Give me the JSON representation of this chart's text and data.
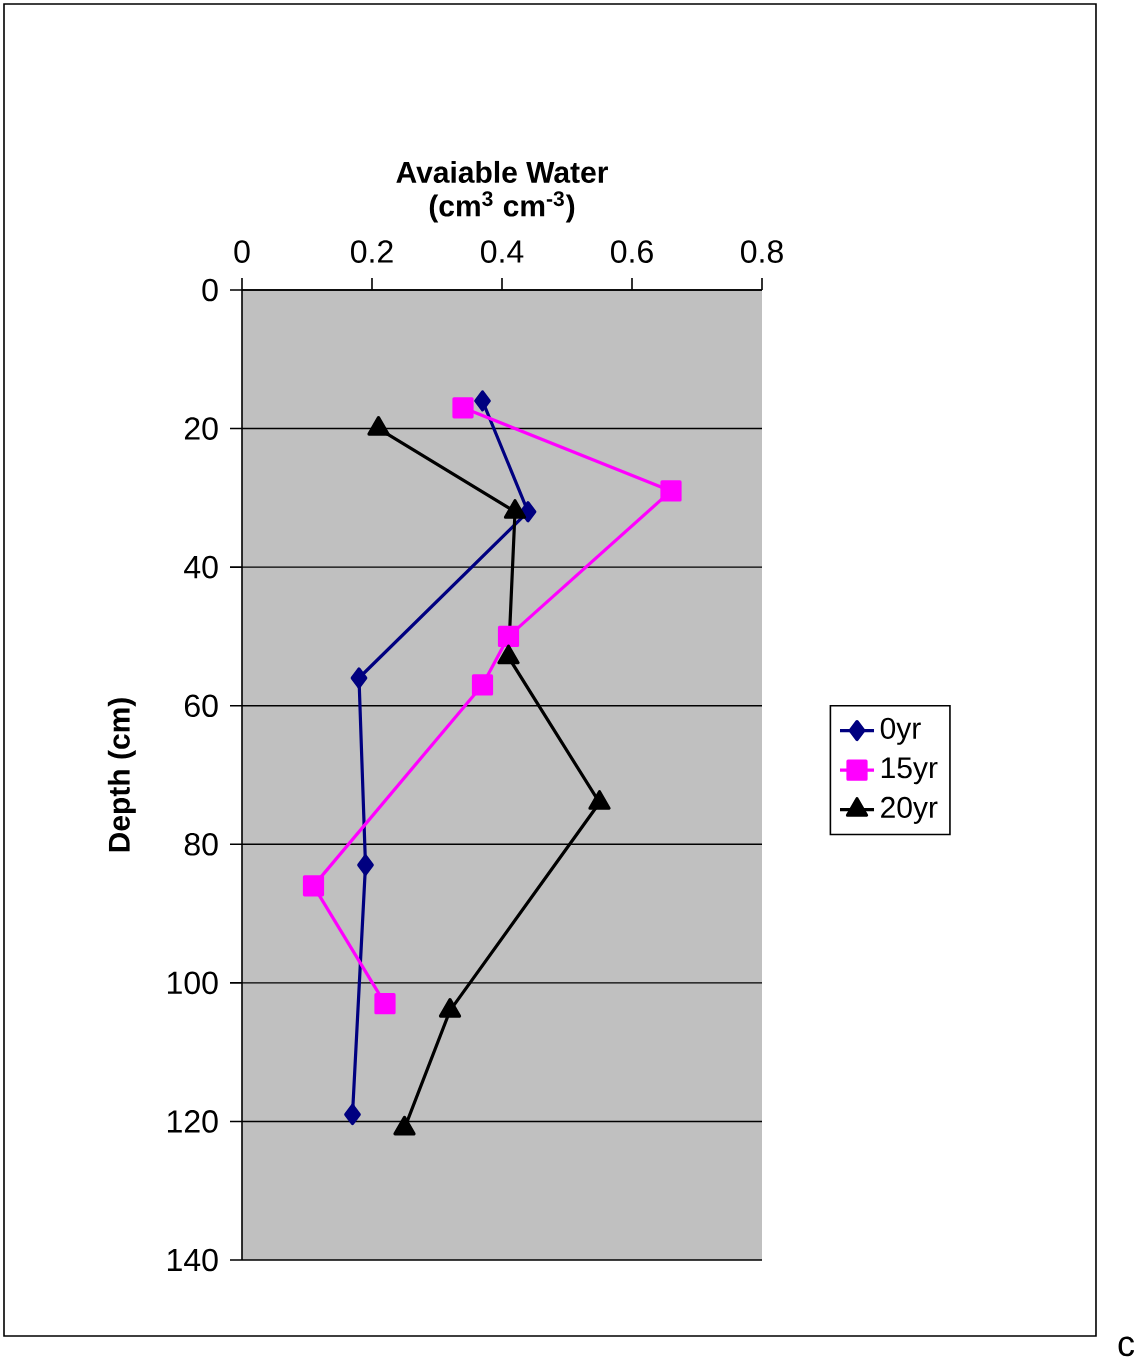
{
  "chart_data": {
    "type": "line",
    "title": "Avaiable Water",
    "xlabel": "(cm$^{3}$ cm$^{-3}$)",
    "ylabel": "Depth (cm)",
    "xlim": [
      0,
      0.8
    ],
    "xticks": [
      0,
      0.2,
      0.4,
      0.6,
      0.8
    ],
    "ylim": [
      140,
      0
    ],
    "yticks": [
      0,
      20,
      40,
      60,
      80,
      100,
      120,
      140
    ],
    "grid": "y",
    "legend": "right",
    "line_style": "solid",
    "annotations": [
      "c"
    ],
    "series": [
      {
        "name": "0yr",
        "color": "#000080",
        "marker": "diamond",
        "x": [
          0.37,
          0.44,
          0.18,
          0.19,
          0.17
        ],
        "values": [
          16,
          32,
          56,
          83,
          119
        ]
      },
      {
        "name": "15yr",
        "color": "#ff00ff",
        "marker": "square",
        "x": [
          0.34,
          0.66,
          0.41,
          0.37,
          0.11,
          0.22
        ],
        "values": [
          17,
          29,
          50,
          57,
          86,
          103
        ]
      },
      {
        "name": "20yr",
        "color": "#000000",
        "marker": "triangle",
        "x": [
          0.21,
          0.42,
          0.41,
          0.55,
          0.32,
          0.25
        ],
        "values": [
          20,
          32,
          53,
          74,
          104,
          121
        ]
      }
    ]
  }
}
